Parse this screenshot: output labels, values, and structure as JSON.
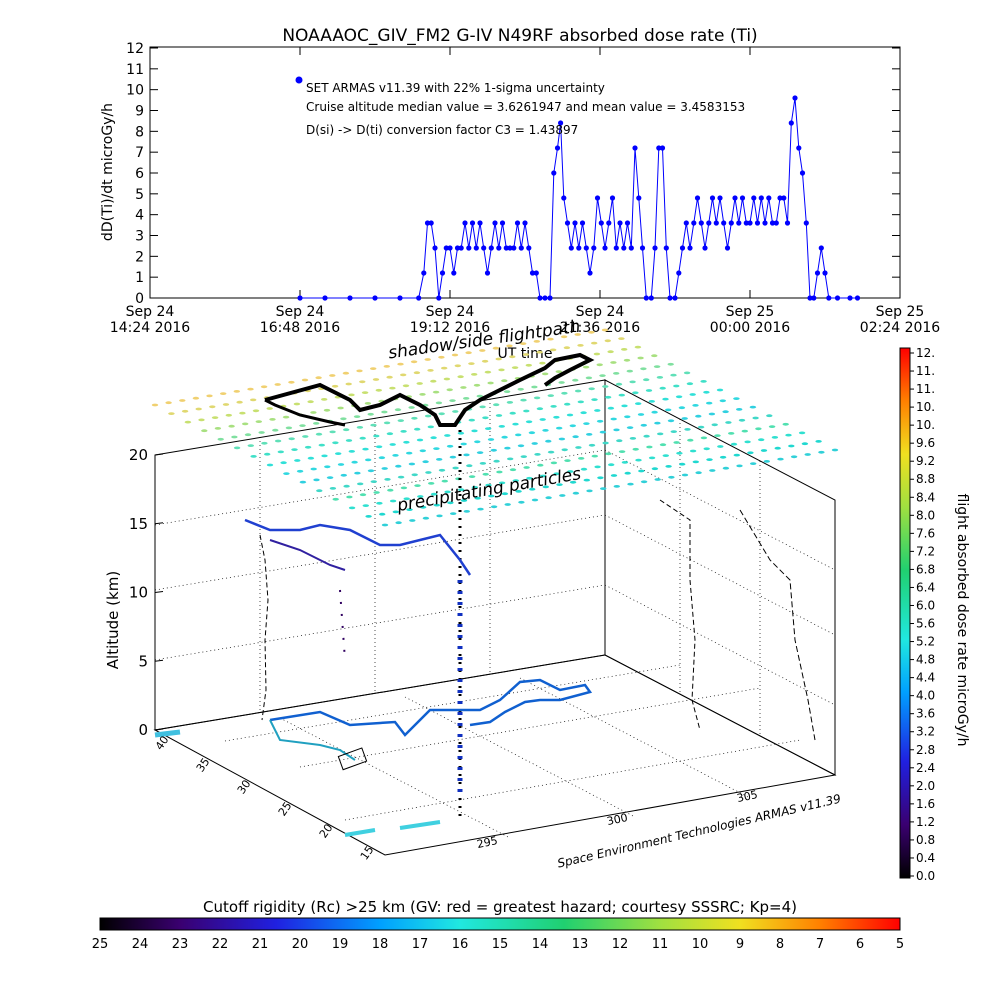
{
  "title": "NOAAAOC_GIV_FM2 G-IV    N49RF  absorbed dose rate (Ti)",
  "chart_data": [
    {
      "type": "line",
      "ylabel": "dD(Ti)/dt microGy/h",
      "xlabel": "UT time",
      "ylim": [
        0,
        12
      ],
      "yticks": [
        "0",
        "1",
        "2",
        "3",
        "4",
        "5",
        "6",
        "7",
        "8",
        "9",
        "10",
        "11",
        "12"
      ],
      "xticks": [
        {
          "day": "Sep 24",
          "time": "14:24 2016"
        },
        {
          "day": "Sep 24",
          "time": "16:48 2016"
        },
        {
          "day": "Sep 24",
          "time": "19:12 2016"
        },
        {
          "day": "Sep 24",
          "time": "21:36 2016"
        },
        {
          "day": "Sep 25",
          "time": "00:00 2016"
        },
        {
          "day": "Sep 25",
          "time": "02:24 2016"
        }
      ],
      "xlim_hours": [
        14.4,
        26.4
      ],
      "annotations": [
        "SET ARMAS v11.39 with 22% 1-sigma uncertainty",
        "Cruise altitude median value = 3.6261947 and mean value = 3.4583153",
        "D(si) -> D(ti) conversion factor C3 = 1.43897"
      ],
      "series": [
        {
          "color": "#0000ff",
          "points": [
            [
              16.8,
              0
            ],
            [
              17.2,
              0
            ],
            [
              17.6,
              0
            ],
            [
              18.0,
              0
            ],
            [
              18.4,
              0
            ],
            [
              18.7,
              0
            ],
            [
              18.78,
              1.2
            ],
            [
              18.84,
              3.6
            ],
            [
              18.9,
              3.6
            ],
            [
              18.96,
              2.4
            ],
            [
              19.02,
              0
            ],
            [
              19.08,
              1.2
            ],
            [
              19.14,
              2.4
            ],
            [
              19.2,
              2.4
            ],
            [
              19.26,
              1.2
            ],
            [
              19.32,
              2.4
            ],
            [
              19.38,
              2.4
            ],
            [
              19.44,
              3.6
            ],
            [
              19.5,
              2.4
            ],
            [
              19.56,
              3.6
            ],
            [
              19.62,
              2.4
            ],
            [
              19.68,
              3.6
            ],
            [
              19.74,
              2.4
            ],
            [
              19.8,
              1.2
            ],
            [
              19.86,
              2.4
            ],
            [
              19.92,
              3.6
            ],
            [
              19.98,
              2.4
            ],
            [
              20.04,
              3.6
            ],
            [
              20.1,
              2.4
            ],
            [
              20.16,
              2.4
            ],
            [
              20.22,
              2.4
            ],
            [
              20.28,
              3.6
            ],
            [
              20.34,
              2.4
            ],
            [
              20.4,
              3.6
            ],
            [
              20.46,
              2.4
            ],
            [
              20.52,
              1.2
            ],
            [
              20.58,
              1.2
            ],
            [
              20.64,
              0
            ],
            [
              20.72,
              0
            ],
            [
              20.8,
              0
            ],
            [
              20.86,
              6.0
            ],
            [
              20.92,
              7.2
            ],
            [
              20.97,
              8.4
            ],
            [
              21.02,
              4.8
            ],
            [
              21.08,
              3.6
            ],
            [
              21.14,
              2.4
            ],
            [
              21.2,
              3.6
            ],
            [
              21.26,
              2.4
            ],
            [
              21.32,
              3.6
            ],
            [
              21.38,
              2.4
            ],
            [
              21.44,
              1.2
            ],
            [
              21.5,
              2.4
            ],
            [
              21.56,
              4.8
            ],
            [
              21.62,
              3.6
            ],
            [
              21.68,
              2.4
            ],
            [
              21.74,
              3.6
            ],
            [
              21.8,
              4.8
            ],
            [
              21.86,
              2.4
            ],
            [
              21.92,
              3.6
            ],
            [
              21.98,
              2.4
            ],
            [
              22.04,
              3.6
            ],
            [
              22.1,
              2.4
            ],
            [
              22.16,
              7.2
            ],
            [
              22.22,
              4.8
            ],
            [
              22.28,
              2.4
            ],
            [
              22.34,
              0
            ],
            [
              22.42,
              0
            ],
            [
              22.48,
              2.4
            ],
            [
              22.54,
              7.2
            ],
            [
              22.6,
              7.2
            ],
            [
              22.66,
              2.4
            ],
            [
              22.72,
              0
            ],
            [
              22.8,
              0
            ],
            [
              22.86,
              1.2
            ],
            [
              22.92,
              2.4
            ],
            [
              22.98,
              3.6
            ],
            [
              23.04,
              2.4
            ],
            [
              23.1,
              3.6
            ],
            [
              23.16,
              4.8
            ],
            [
              23.22,
              3.6
            ],
            [
              23.28,
              2.4
            ],
            [
              23.34,
              3.6
            ],
            [
              23.4,
              4.8
            ],
            [
              23.46,
              3.6
            ],
            [
              23.52,
              4.8
            ],
            [
              23.58,
              3.6
            ],
            [
              23.64,
              2.4
            ],
            [
              23.7,
              3.6
            ],
            [
              23.76,
              4.8
            ],
            [
              23.82,
              3.6
            ],
            [
              23.88,
              4.8
            ],
            [
              23.94,
              3.6
            ],
            [
              24.0,
              3.6
            ],
            [
              24.06,
              4.8
            ],
            [
              24.12,
              3.6
            ],
            [
              24.18,
              4.8
            ],
            [
              24.24,
              3.6
            ],
            [
              24.3,
              4.8
            ],
            [
              24.36,
              3.6
            ],
            [
              24.42,
              3.6
            ],
            [
              24.48,
              4.8
            ],
            [
              24.54,
              4.8
            ],
            [
              24.6,
              3.6
            ],
            [
              24.66,
              8.4
            ],
            [
              24.72,
              9.6
            ],
            [
              24.78,
              7.2
            ],
            [
              24.84,
              6.0
            ],
            [
              24.9,
              3.6
            ],
            [
              24.96,
              0
            ],
            [
              25.02,
              0
            ],
            [
              25.08,
              1.2
            ],
            [
              25.14,
              2.4
            ],
            [
              25.2,
              1.2
            ],
            [
              25.26,
              0
            ],
            [
              25.4,
              0
            ],
            [
              25.6,
              0
            ],
            [
              25.72,
              0
            ]
          ]
        }
      ]
    },
    {
      "type": "scatter",
      "title": "shadow/side flightpath",
      "zlabel": "Altitude (km)",
      "zticks": [
        "0",
        "5",
        "10",
        "15",
        "20"
      ],
      "latticks": [
        "40",
        "35",
        "30",
        "25",
        "20",
        "15"
      ],
      "lonticks": [
        "295",
        "300",
        "305"
      ],
      "layer_labels": [
        "precipitating particles"
      ],
      "credit": "Space Environment Technologies ARMAS v11.39",
      "colorbar": {
        "label": "flight absorbed dose rate microGy/h",
        "ticks": [
          "0.0",
          "0.4",
          "0.8",
          "1.2",
          "1.6",
          "2.0",
          "2.4",
          "2.8",
          "3.2",
          "3.6",
          "4.0",
          "4.4",
          "4.8",
          "5.2",
          "5.6",
          "6.0",
          "6.4",
          "6.8",
          "7.2",
          "7.6",
          "8.0",
          "8.4",
          "8.8",
          "9.2",
          "9.6",
          "10.",
          "10.",
          "11.",
          "11.",
          "12."
        ]
      },
      "colorbar_bottom": {
        "label": "Cutoff rigidity (Rc) >25 km (GV: red = greatest hazard; courtesy SSSRC; Kp=4)",
        "ticks": [
          "25",
          "24",
          "23",
          "22",
          "21",
          "20",
          "19",
          "18",
          "17",
          "16",
          "15",
          "14",
          "13",
          "12",
          "11",
          "10",
          "9",
          "8",
          "7",
          "6",
          "5"
        ]
      }
    }
  ]
}
